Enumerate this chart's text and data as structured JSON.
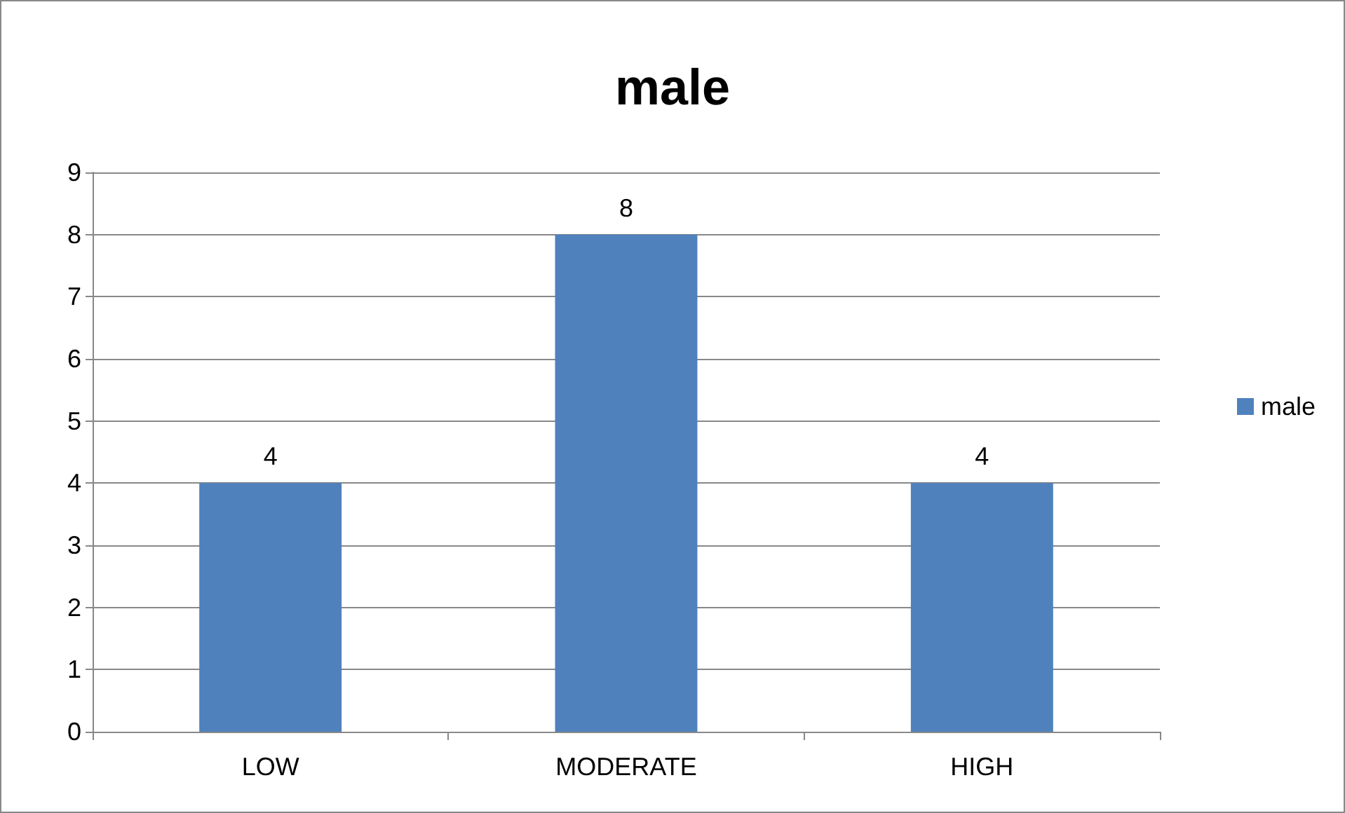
{
  "chart_data": {
    "type": "bar",
    "title": "male",
    "categories": [
      "LOW",
      "MODERATE",
      "HIGH"
    ],
    "series": [
      {
        "name": "male",
        "color": "#4f81bd",
        "values": [
          4,
          8,
          4
        ]
      }
    ],
    "ylim": [
      0,
      9
    ],
    "yticks": [
      0,
      1,
      2,
      3,
      4,
      5,
      6,
      7,
      8,
      9
    ],
    "grid": "y",
    "legend": "right",
    "data_labels": true
  }
}
